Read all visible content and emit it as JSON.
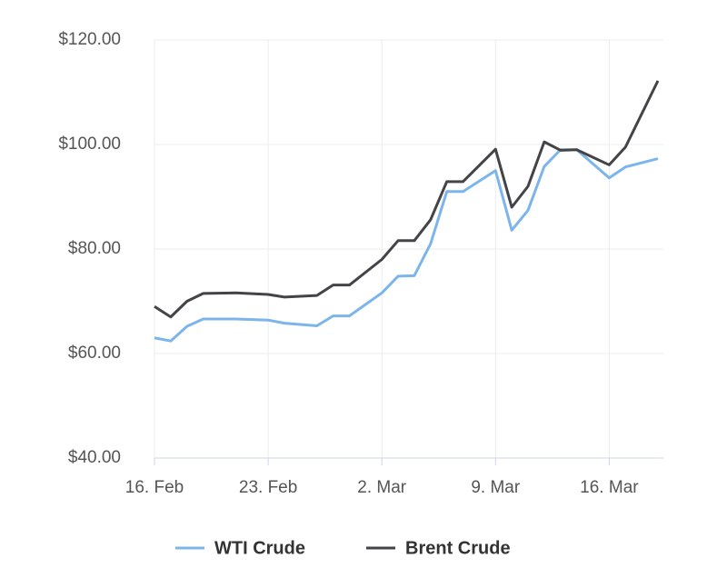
{
  "chart_data": {
    "type": "line",
    "x": [
      "16. Feb",
      "17. Feb",
      "18. Feb",
      "19. Feb",
      "21. Feb",
      "23. Feb",
      "24. Feb",
      "26. Feb",
      "27. Feb",
      "28. Feb",
      "2. Mar",
      "3. Mar",
      "4. Mar",
      "5. Mar",
      "6. Mar",
      "7. Mar",
      "9. Mar",
      "10. Mar",
      "11. Mar",
      "12. Mar",
      "13. Mar",
      "14. Mar",
      "16. Mar",
      "17. Mar",
      "19. Mar"
    ],
    "series": [
      {
        "name": "WTI Crude",
        "color": "#7cb5ec",
        "values": [
          63.0,
          62.4,
          65.2,
          66.6,
          66.6,
          66.4,
          65.8,
          65.3,
          67.2,
          67.2,
          71.6,
          74.8,
          74.9,
          81.0,
          91.0,
          91.0,
          95.0,
          83.6,
          87.4,
          95.8,
          99.0,
          99.0,
          93.6,
          95.7,
          97.3
        ]
      },
      {
        "name": "Brent Crude",
        "color": "#434348",
        "values": [
          69.0,
          67.0,
          70.0,
          71.5,
          71.6,
          71.3,
          70.8,
          71.1,
          73.1,
          73.1,
          78.0,
          81.6,
          81.6,
          85.6,
          92.9,
          92.9,
          99.1,
          88.0,
          92.0,
          100.5,
          98.9,
          99.0,
          96.1,
          99.5,
          112.2
        ]
      }
    ],
    "xlim": [
      "16. Feb",
      "19. Mar"
    ],
    "xticks": [
      "16. Feb",
      "23. Feb",
      "2. Mar",
      "9. Mar",
      "16. Mar"
    ],
    "ylim": [
      40,
      120
    ],
    "yticks": [
      {
        "value": 40,
        "label": "$40.00"
      },
      {
        "value": 60,
        "label": "$60.00"
      },
      {
        "value": 80,
        "label": "$80.00"
      },
      {
        "value": 100,
        "label": "$100.00"
      },
      {
        "value": 120,
        "label": "$120.00"
      }
    ],
    "grid": true
  }
}
